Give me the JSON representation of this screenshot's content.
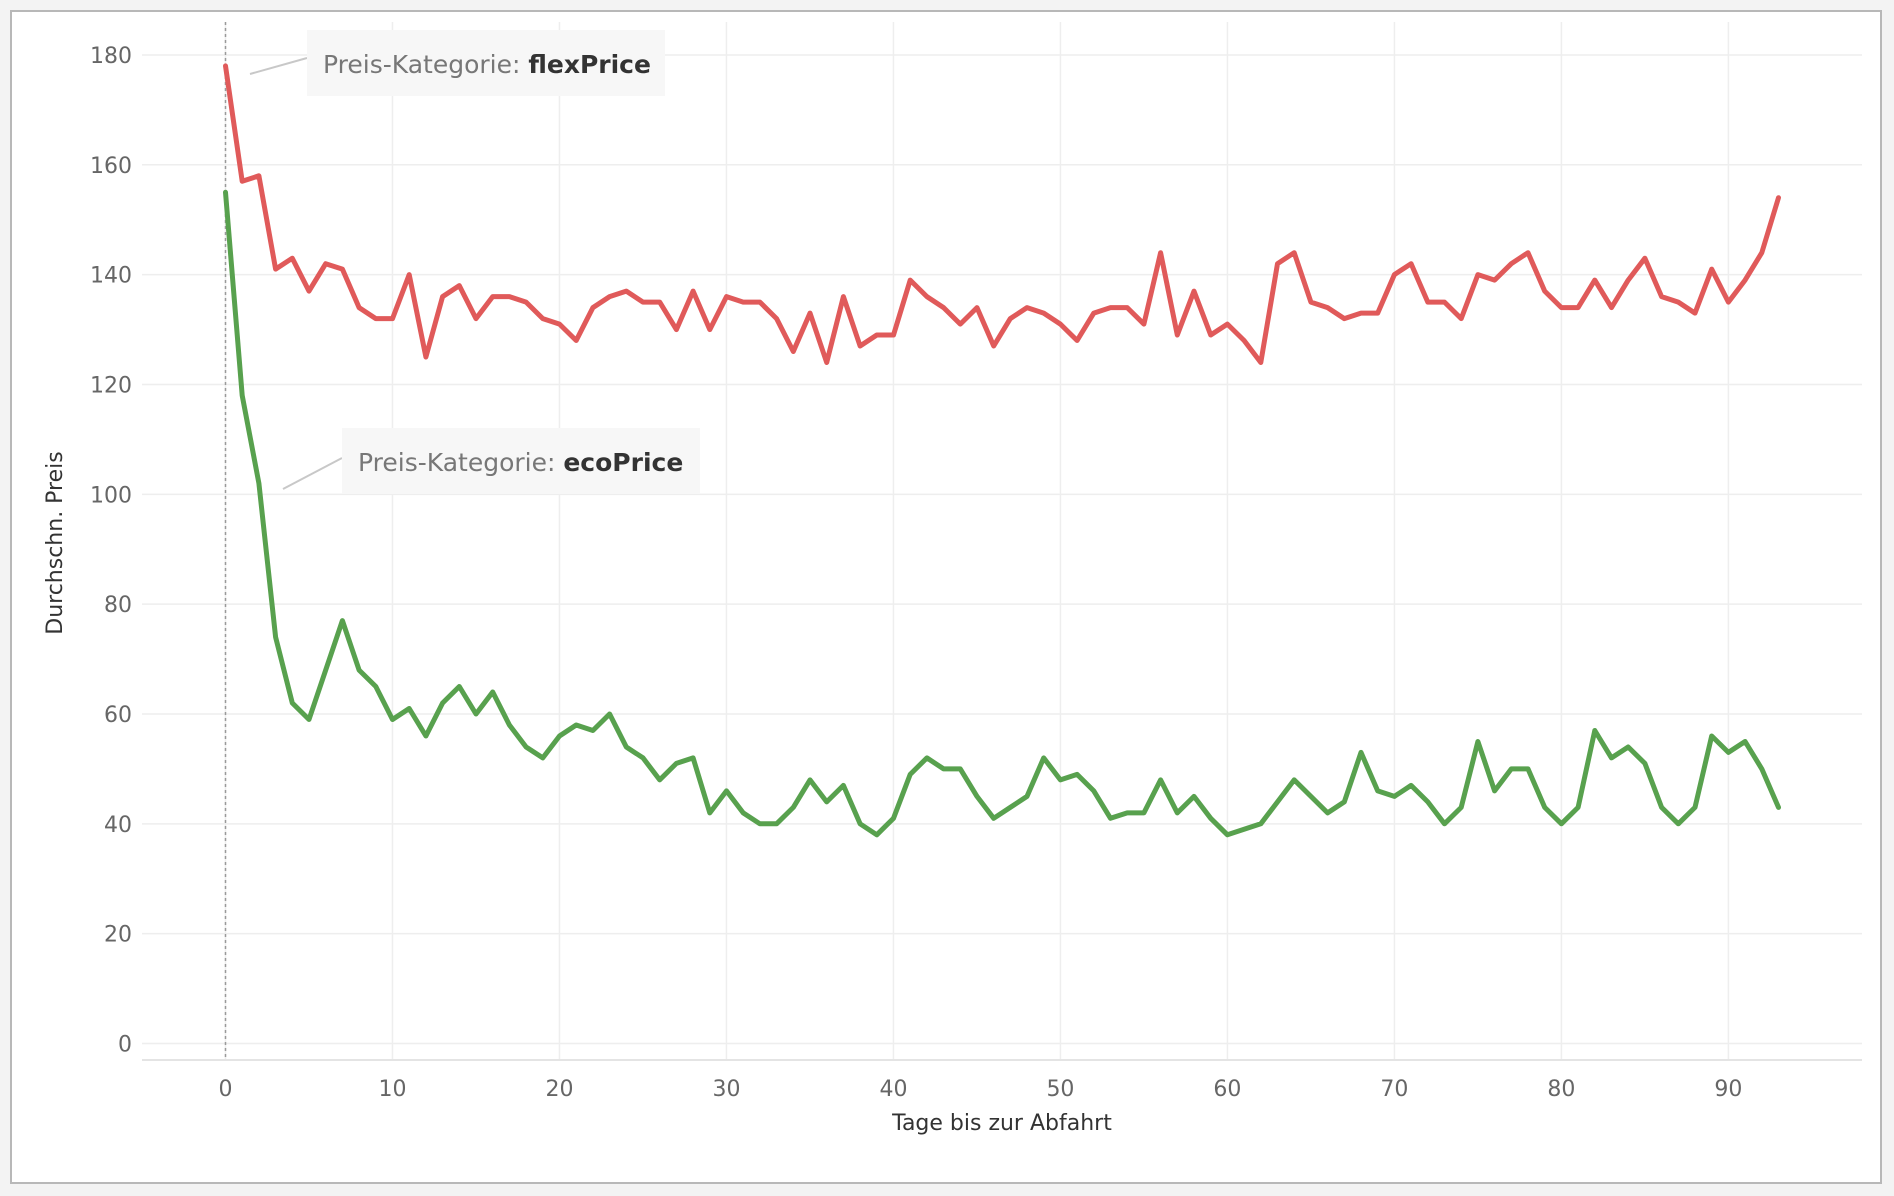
{
  "chart_data": {
    "type": "line",
    "title": "",
    "xlabel": "Tage bis zur Abfahrt",
    "ylabel": "Durchschn. Preis",
    "xlim": [
      -5,
      98
    ],
    "ylim": [
      -3,
      186
    ],
    "x_ticks": [
      0,
      10,
      20,
      30,
      40,
      50,
      60,
      70,
      80,
      90
    ],
    "y_ticks": [
      0,
      20,
      40,
      60,
      80,
      100,
      120,
      140,
      160,
      180
    ],
    "grid": true,
    "legend": "none",
    "reference_line": {
      "x": 0,
      "style": "dotted"
    },
    "series": [
      {
        "category_label": "Preis-Kategorie:",
        "name": "flexPrice",
        "color": "#e05a5a",
        "x": [
          0,
          1,
          2,
          3,
          4,
          5,
          6,
          7,
          8,
          9,
          10,
          11,
          12,
          13,
          14,
          15,
          16,
          17,
          18,
          19,
          20,
          21,
          22,
          23,
          24,
          25,
          26,
          27,
          28,
          29,
          30,
          31,
          32,
          33,
          34,
          35,
          36,
          37,
          38,
          39,
          40,
          41,
          42,
          43,
          44,
          45,
          46,
          47,
          48,
          49,
          50,
          51,
          52,
          53,
          54,
          55,
          56,
          57,
          58,
          59,
          60,
          61,
          62,
          63,
          64,
          65,
          66,
          67,
          68,
          69,
          70,
          71,
          72,
          73,
          74,
          75,
          76,
          77,
          78,
          79,
          80,
          81,
          82,
          83,
          84,
          85,
          86,
          87,
          88,
          89,
          90,
          91,
          92,
          93
        ],
        "y": [
          178,
          157,
          158,
          141,
          143,
          137,
          142,
          141,
          134,
          132,
          132,
          140,
          125,
          136,
          138,
          132,
          136,
          136,
          135,
          132,
          131,
          128,
          134,
          136,
          137,
          135,
          135,
          130,
          137,
          130,
          136,
          135,
          135,
          132,
          126,
          133,
          124,
          136,
          127,
          129,
          129,
          139,
          136,
          134,
          131,
          134,
          127,
          132,
          134,
          133,
          131,
          128,
          133,
          134,
          134,
          131,
          144,
          129,
          137,
          129,
          131,
          128,
          124,
          142,
          144,
          135,
          134,
          132,
          133,
          133,
          140,
          142,
          135,
          135,
          132,
          140,
          139,
          142,
          144,
          137,
          134,
          134,
          139,
          134,
          139,
          143,
          136,
          135,
          133,
          141,
          135,
          139,
          144,
          154
        ]
      },
      {
        "category_label": "Preis-Kategorie:",
        "name": "ecoPrice",
        "color": "#58a14e",
        "x": [
          0,
          1,
          2,
          3,
          4,
          5,
          6,
          7,
          8,
          9,
          10,
          11,
          12,
          13,
          14,
          15,
          16,
          17,
          18,
          19,
          20,
          21,
          22,
          23,
          24,
          25,
          26,
          27,
          28,
          29,
          30,
          31,
          32,
          33,
          34,
          35,
          36,
          37,
          38,
          39,
          40,
          41,
          42,
          43,
          44,
          45,
          46,
          47,
          48,
          49,
          50,
          51,
          52,
          53,
          54,
          55,
          56,
          57,
          58,
          59,
          60,
          61,
          62,
          63,
          64,
          65,
          66,
          67,
          68,
          69,
          70,
          71,
          72,
          73,
          74,
          75,
          76,
          77,
          78,
          79,
          80,
          81,
          82,
          83,
          84,
          85,
          86,
          87,
          88,
          89,
          90,
          91,
          92,
          93
        ],
        "y": [
          155,
          118,
          102,
          74,
          62,
          59,
          68,
          77,
          68,
          65,
          59,
          61,
          56,
          62,
          65,
          60,
          64,
          58,
          54,
          52,
          56,
          58,
          57,
          60,
          54,
          52,
          48,
          51,
          52,
          42,
          46,
          42,
          40,
          40,
          43,
          48,
          44,
          47,
          40,
          38,
          41,
          49,
          52,
          50,
          50,
          45,
          41,
          43,
          45,
          52,
          48,
          49,
          46,
          41,
          42,
          42,
          48,
          42,
          45,
          41,
          38,
          39,
          40,
          44,
          48,
          45,
          42,
          44,
          53,
          46,
          45,
          47,
          44,
          40,
          43,
          55,
          46,
          50,
          50,
          43,
          40,
          43,
          57,
          52,
          54,
          51,
          43,
          40,
          43,
          56,
          53,
          55,
          50,
          43
        ]
      }
    ]
  }
}
